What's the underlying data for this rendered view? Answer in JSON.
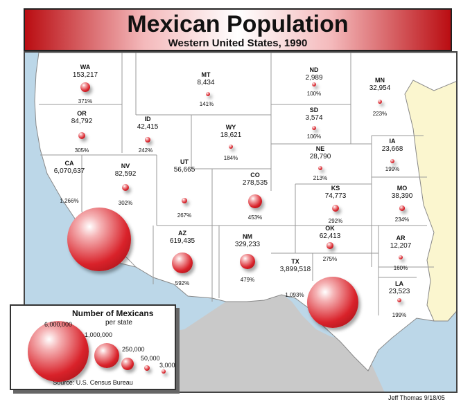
{
  "title": "Mexican Population",
  "subtitle": "Western United States, 1990",
  "states": [
    {
      "abbr": "WA",
      "pop": "153,217",
      "pct": "371%",
      "value": 153217
    },
    {
      "abbr": "OR",
      "pop": "84,792",
      "pct": "305%",
      "value": 84792
    },
    {
      "abbr": "CA",
      "pop": "6,070,637",
      "pct": "1,266%",
      "value": 6070637
    },
    {
      "abbr": "NV",
      "pop": "82,592",
      "pct": "302%",
      "value": 82592
    },
    {
      "abbr": "ID",
      "pop": "42,415",
      "pct": "242%",
      "value": 42415
    },
    {
      "abbr": "MT",
      "pop": "8,434",
      "pct": "141%",
      "value": 8434
    },
    {
      "abbr": "WY",
      "pop": "18,621",
      "pct": "184%",
      "value": 18621
    },
    {
      "abbr": "UT",
      "pop": "56,665",
      "pct": "267%",
      "value": 56665
    },
    {
      "abbr": "CO",
      "pop": "278,535",
      "pct": "453%",
      "value": 278535
    },
    {
      "abbr": "AZ",
      "pop": "619,435",
      "pct": "592%",
      "value": 619435
    },
    {
      "abbr": "NM",
      "pop": "329,233",
      "pct": "479%",
      "value": 329233
    },
    {
      "abbr": "ND",
      "pop": "2,989",
      "pct": "100%",
      "value": 2989
    },
    {
      "abbr": "SD",
      "pop": "3,574",
      "pct": "106%",
      "value": 3574
    },
    {
      "abbr": "NE",
      "pop": "28,790",
      "pct": "213%",
      "value": 28790
    },
    {
      "abbr": "KS",
      "pop": "74,773",
      "pct": "292%",
      "value": 74773
    },
    {
      "abbr": "OK",
      "pop": "62,413",
      "pct": "275%",
      "value": 62413
    },
    {
      "abbr": "TX",
      "pop": "3,899,518",
      "pct": "1,093%",
      "value": 3899518
    },
    {
      "abbr": "MN",
      "pop": "32,954",
      "pct": "223%",
      "value": 32954
    },
    {
      "abbr": "IA",
      "pop": "23,668",
      "pct": "199%",
      "value": 23668
    },
    {
      "abbr": "MO",
      "pop": "38,390",
      "pct": "234%",
      "value": 38390
    },
    {
      "abbr": "AR",
      "pop": "12,207",
      "pct": "160%",
      "value": 12207
    },
    {
      "abbr": "LA",
      "pop": "23,523",
      "pct": "199%",
      "value": 23523
    }
  ],
  "legend": {
    "title": "Number of Mexicans",
    "subtitle": "per state",
    "source": "Source: U.S. Census Bureau",
    "values": [
      {
        "label": "6,000,000",
        "value": 6000000
      },
      {
        "label": "1,000,000",
        "value": 1000000
      },
      {
        "label": "250,000",
        "value": 250000
      },
      {
        "label": "50,000",
        "value": 50000
      },
      {
        "label": "3,000",
        "value": 3000
      }
    ]
  },
  "credit": "Jeff Thomas   9/18/05",
  "colors": {
    "bubble": "#d9222a",
    "title_band": "#ba0d12",
    "land": "#ffffff",
    "water": "#bcd7e8",
    "foreign": "#c9c9c9",
    "eastern_states": "#fbf6cf"
  }
}
